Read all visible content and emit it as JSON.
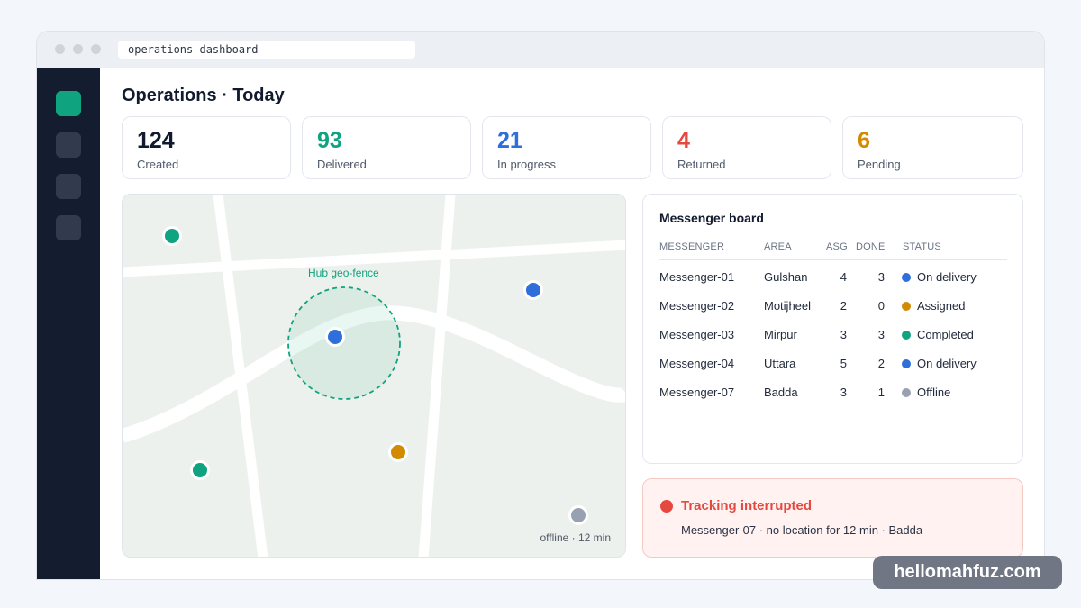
{
  "browser": {
    "address": "operations dashboard"
  },
  "sidebar": {
    "items": [
      {
        "icon": "dashboard-icon",
        "active": true
      },
      {
        "icon": "nav-icon",
        "active": false
      },
      {
        "icon": "nav-icon",
        "active": false
      },
      {
        "icon": "nav-icon",
        "active": false
      }
    ]
  },
  "page": {
    "title": "Operations · Today"
  },
  "stats": [
    {
      "value": "124",
      "label": "Created",
      "color": "#111a2e"
    },
    {
      "value": "93",
      "label": "Delivered",
      "color": "#10a37f"
    },
    {
      "value": "21",
      "label": "In progress",
      "color": "#2f6fdb"
    },
    {
      "value": "4",
      "label": "Returned",
      "color": "#e5483f"
    },
    {
      "value": "6",
      "label": "Pending",
      "color": "#d28a00"
    }
  ],
  "map": {
    "geofence_label": "Hub geo-fence",
    "offline_note": "offline · 12 min",
    "markers": [
      {
        "status": "completed",
        "color": "#10a37f"
      },
      {
        "status": "on-delivery",
        "color": "#2f6fdb"
      },
      {
        "status": "on-delivery",
        "color": "#2f6fdb"
      },
      {
        "status": "completed",
        "color": "#10a37f"
      },
      {
        "status": "assigned",
        "color": "#d28a00"
      },
      {
        "status": "offline",
        "color": "#98a1b2"
      }
    ]
  },
  "board": {
    "title": "Messenger board",
    "columns": [
      "MESSENGER",
      "AREA",
      "ASG",
      "DONE",
      "STATUS"
    ],
    "rows": [
      {
        "messenger": "Messenger-01",
        "area": "Gulshan",
        "asg": "4",
        "done": "3",
        "status": "On delivery",
        "color": "#2f6fdb"
      },
      {
        "messenger": "Messenger-02",
        "area": "Motijheel",
        "asg": "2",
        "done": "0",
        "status": "Assigned",
        "color": "#d28a00"
      },
      {
        "messenger": "Messenger-03",
        "area": "Mirpur",
        "asg": "3",
        "done": "3",
        "status": "Completed",
        "color": "#10a37f"
      },
      {
        "messenger": "Messenger-04",
        "area": "Uttara",
        "asg": "5",
        "done": "2",
        "status": "On delivery",
        "color": "#2f6fdb"
      },
      {
        "messenger": "Messenger-07",
        "area": "Badda",
        "asg": "3",
        "done": "1",
        "status": "Offline",
        "color": "#98a1b2"
      }
    ]
  },
  "alert": {
    "title": "Tracking interrupted",
    "detail": "Messenger-07 · no location for 12 min · Badda",
    "color": "#e5483f"
  },
  "watermark": "hellomahfuz.com"
}
